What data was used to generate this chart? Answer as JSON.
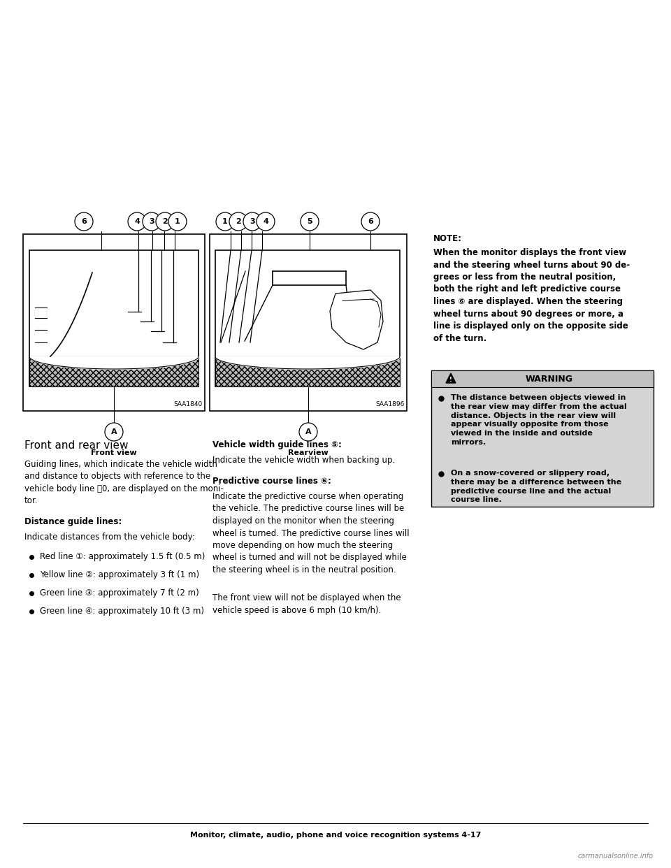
{
  "page_bg": "#ffffff",
  "page_width": 9.6,
  "page_height": 12.42,
  "front_view_label": "Front view",
  "rear_view_label": "Rearview",
  "section_title": "Front and rear view",
  "front_view_SAA": "SAA1840",
  "rear_view_SAA": "SAA1896",
  "body_text_1": "Guiding lines, which indicate the vehicle width\nand distance to objects with reference to the\nvehicle body line ⑀0, are displayed on the moni-\ntor.",
  "distance_guide_title": "Distance guide lines:",
  "distance_guide_intro": "Indicate distances from the vehicle body:",
  "bullet_1": "Red line ①: approximately 1.5 ft (0.5 m)",
  "bullet_2": "Yellow line ②: approximately 3 ft (1 m)",
  "bullet_3": "Green line ③: approximately 7 ft (2 m)",
  "bullet_4": "Green line ④: approximately 10 ft (3 m)",
  "rear_head": "Vehicle width guide lines ⑤:",
  "rear_text_1": "Indicate the vehicle width when backing up.",
  "predictive_head": "Predictive course lines ⑥:",
  "predictive_text": "Indicate the predictive course when operating\nthe vehicle. The predictive course lines will be\ndisplayed on the monitor when the steering\nwheel is turned. The predictive course lines will\nmove depending on how much the steering\nwheel is turned and will not be displayed while\nthe steering wheel is in the neutral position.",
  "front_view_note": "The front view will not be displayed when the\nvehicle speed is above 6 mph (10 km/h).",
  "note_head": "NOTE:",
  "note_text": "When the monitor displays the front view\nand the steering wheel turns about 90 de-\ngrees or less from the neutral position,\nboth the right and left predictive course\nlines ⑥ are displayed. When the steering\nwheel turns about 90 degrees or more, a\nline is displayed only on the opposite side\nof the turn.",
  "warning_head": "WARNING",
  "warning_bullet_1": "The distance between objects viewed in\nthe rear view may differ from the actual\ndistance. Objects in the rear view will\nappear visually opposite from those\nviewed in the inside and outside\nmirrors.",
  "warning_bullet_2": "On a snow-covered or slippery road,\nthere may be a difference between the\npredictive course line and the actual\ncourse line.",
  "footer_text": "Monitor, climate, audio, phone and voice recognition systems 4-17",
  "text_color": "#000000"
}
